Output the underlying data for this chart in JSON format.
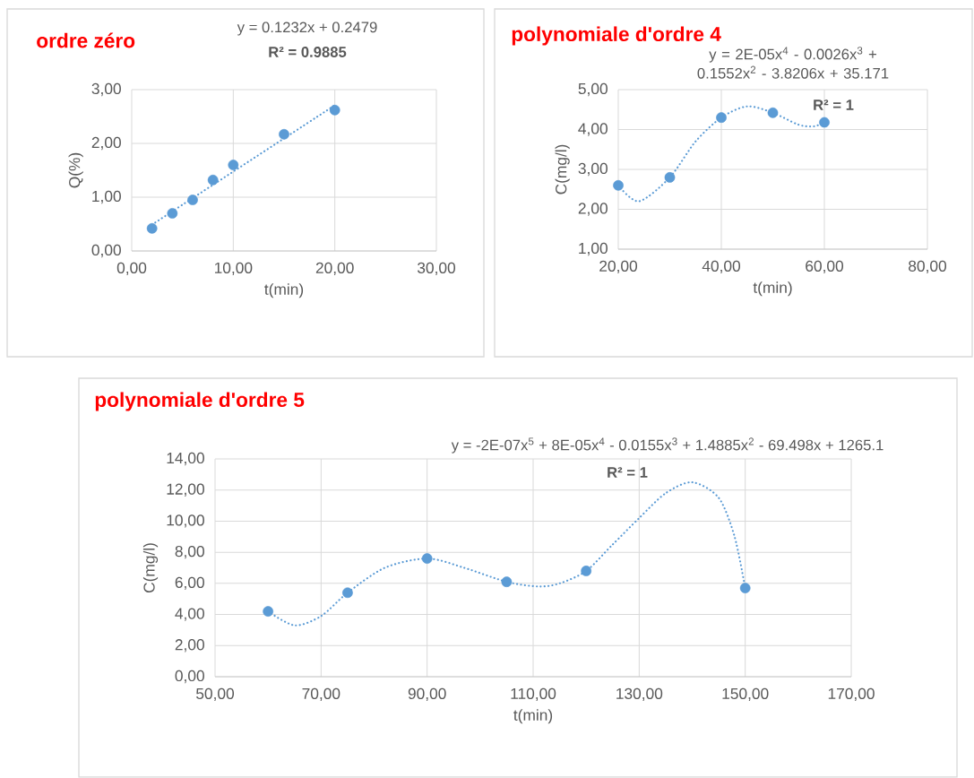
{
  "chart_data": [
    {
      "type": "scatter",
      "title": "ordre zéro",
      "xlabel": "t(min)",
      "ylabel": "Q(%)",
      "annotations": [
        "y = 0.1232x + 0.2479",
        "R² = 0.9885"
      ],
      "xlim": [
        0,
        30
      ],
      "ylim": [
        0,
        3
      ],
      "xticks": [
        {
          "value": 0,
          "label": "0,00"
        },
        {
          "value": 10,
          "label": "10,00"
        },
        {
          "value": 20,
          "label": "20,00"
        },
        {
          "value": 30,
          "label": "30,00"
        }
      ],
      "yticks": [
        {
          "value": 0,
          "label": "0,00"
        },
        {
          "value": 1,
          "label": "1,00"
        },
        {
          "value": 2,
          "label": "2,00"
        },
        {
          "value": 3,
          "label": "3,00"
        }
      ],
      "grid": true,
      "series": [
        {
          "type": "scatter",
          "color": "#5b9bd5",
          "marker": "circle",
          "x": [
            2,
            4,
            6,
            8,
            10,
            15,
            20
          ],
          "values": [
            0.42,
            0.7,
            0.95,
            1.32,
            1.6,
            2.17,
            2.62
          ]
        },
        {
          "type": "line",
          "color": "#5b9bd5",
          "marker": "none",
          "line_style": "dotted",
          "x": [
            2,
            20
          ],
          "values": [
            0.49,
            2.71
          ]
        }
      ]
    },
    {
      "type": "scatter",
      "title": "polynomiale d'ordre 4",
      "xlabel": "t(min)",
      "ylabel": "C(mg/l)",
      "annotations": [
        "y = 2E-05x$^{4}$ - 0.0026x$^{3}$ + 0.1552x$^{2}$ - 3.8206x + 35.171",
        "R² = 1"
      ],
      "xlim": [
        20,
        80
      ],
      "ylim": [
        1,
        5
      ],
      "xticks": [
        {
          "value": 20,
          "label": "20,00"
        },
        {
          "value": 40,
          "label": "40,00"
        },
        {
          "value": 60,
          "label": "60,00"
        },
        {
          "value": 80,
          "label": "80,00"
        }
      ],
      "yticks": [
        {
          "value": 1,
          "label": "1,00"
        },
        {
          "value": 2,
          "label": "2,00"
        },
        {
          "value": 3,
          "label": "3,00"
        },
        {
          "value": 4,
          "label": "4,00"
        },
        {
          "value": 5,
          "label": "5,00"
        }
      ],
      "grid": true,
      "series": [
        {
          "type": "scatter",
          "color": "#5b9bd5",
          "marker": "circle",
          "x": [
            20,
            30,
            40,
            50,
            60
          ],
          "values": [
            2.6,
            2.8,
            4.3,
            4.42,
            4.18
          ]
        },
        {
          "type": "line",
          "color": "#5b9bd5",
          "marker": "none",
          "line_style": "dotted",
          "x": [
            20,
            24,
            30,
            35,
            40,
            45,
            50,
            55,
            58,
            60
          ],
          "values": [
            2.6,
            2.2,
            2.8,
            3.7,
            4.3,
            4.58,
            4.42,
            4.12,
            4.08,
            4.18
          ]
        }
      ]
    },
    {
      "type": "scatter",
      "title": "polynomiale d'ordre 5",
      "xlabel": "t(min)",
      "ylabel": "C(mg/l)",
      "annotations": [
        "y = -2E-07x$^{5}$ + 8E-05x$^{4}$ - 0.0155x$^{3}$ + 1.4885x$^{2}$ - 69.498x + 1265.1",
        "R² = 1"
      ],
      "xlim": [
        50,
        170
      ],
      "ylim": [
        0,
        14
      ],
      "xticks": [
        {
          "value": 50,
          "label": "50,00"
        },
        {
          "value": 70,
          "label": "70,00"
        },
        {
          "value": 90,
          "label": "90,00"
        },
        {
          "value": 110,
          "label": "110,00"
        },
        {
          "value": 130,
          "label": "130,00"
        },
        {
          "value": 150,
          "label": "150,00"
        },
        {
          "value": 170,
          "label": "170,00"
        }
      ],
      "yticks": [
        {
          "value": 0,
          "label": "0,00"
        },
        {
          "value": 2,
          "label": "2,00"
        },
        {
          "value": 4,
          "label": "4,00"
        },
        {
          "value": 6,
          "label": "6,00"
        },
        {
          "value": 8,
          "label": "8,00"
        },
        {
          "value": 10,
          "label": "10,00"
        },
        {
          "value": 12,
          "label": "12,00"
        },
        {
          "value": 14,
          "label": "14,00"
        }
      ],
      "grid": true,
      "series": [
        {
          "type": "scatter",
          "color": "#5b9bd5",
          "marker": "circle",
          "x": [
            60,
            75,
            90,
            105,
            120,
            150
          ],
          "values": [
            4.2,
            5.4,
            7.6,
            6.1,
            6.8,
            5.7
          ]
        },
        {
          "type": "line",
          "color": "#5b9bd5",
          "marker": "none",
          "line_style": "dotted",
          "x": [
            60,
            65,
            70,
            75,
            82,
            90,
            97,
            105,
            111,
            115,
            120,
            125,
            130,
            135,
            140,
            145,
            148,
            150
          ],
          "values": [
            4.2,
            3.3,
            3.9,
            5.4,
            7.0,
            7.6,
            7.0,
            6.1,
            5.8,
            6.0,
            6.8,
            8.5,
            10.2,
            11.8,
            12.5,
            11.5,
            9.0,
            5.7
          ]
        }
      ]
    }
  ]
}
